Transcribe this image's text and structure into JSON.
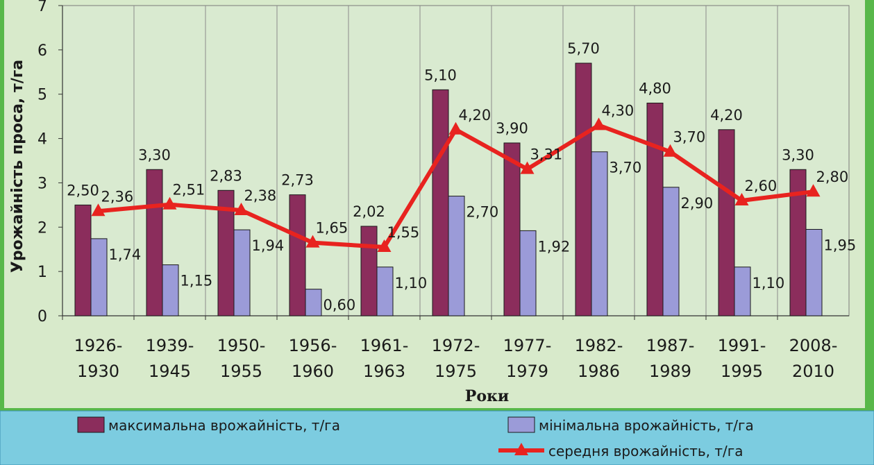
{
  "chart_data": {
    "type": "bar",
    "categories": [
      [
        "1926-",
        "1930"
      ],
      [
        "1939-",
        "1945"
      ],
      [
        "1950-",
        "1955"
      ],
      [
        "1956-",
        "1960"
      ],
      [
        "1961-",
        "1963"
      ],
      [
        "1972-",
        "1975"
      ],
      [
        "1977-",
        "1979"
      ],
      [
        "1982-",
        "1986"
      ],
      [
        "1987-",
        "1989"
      ],
      [
        "1991-",
        "1995"
      ],
      [
        "2008-",
        "2010"
      ]
    ],
    "series": [
      {
        "name": "максимальна врожайність, т/га",
        "kind": "bar",
        "color": "#8b2d5c",
        "values": [
          2.5,
          3.3,
          2.83,
          2.73,
          2.02,
          5.1,
          3.9,
          5.7,
          4.8,
          4.2,
          3.3
        ],
        "labels": [
          "2,50",
          "3,30",
          "2,83",
          "2,73",
          "2,02",
          "5,10",
          "3,90",
          "5,70",
          "4,80",
          "4,20",
          "3,30"
        ]
      },
      {
        "name": "мінімальна врожайність, т/га",
        "kind": "bar",
        "color": "#9b9bd8",
        "values": [
          1.74,
          1.15,
          1.94,
          0.6,
          1.1,
          2.7,
          1.92,
          3.7,
          2.9,
          1.1,
          1.95
        ],
        "labels": [
          "1,74",
          "1,15",
          "1,94",
          "0,60",
          "1,10",
          "2,70",
          "1,92",
          "3,70",
          "2,90",
          "1,10",
          "1,95"
        ]
      },
      {
        "name": "середня врожайність, т/га",
        "kind": "line",
        "marker": "triangle",
        "color": "#e8231f",
        "values": [
          2.36,
          2.51,
          2.38,
          1.65,
          1.55,
          4.2,
          3.31,
          4.3,
          3.7,
          2.6,
          2.8
        ],
        "labels": [
          "2,36",
          "2,51",
          "2,38",
          "1,65",
          "1,55",
          "4,20",
          "3,31",
          "4,30",
          "3,70",
          "2,60",
          "2,80"
        ]
      }
    ],
    "xlabel": "Роки",
    "ylabel": "Урожайність проса, т/га",
    "ylim": [
      0,
      7
    ],
    "yticks": [
      "0",
      "1",
      "2",
      "3",
      "4",
      "5",
      "6",
      "7"
    ],
    "grid": "vertical",
    "legend": "bottom",
    "plot_background": "#d9ead0",
    "legend_background": "#7ccce0",
    "frame_color": "#58b84a"
  }
}
